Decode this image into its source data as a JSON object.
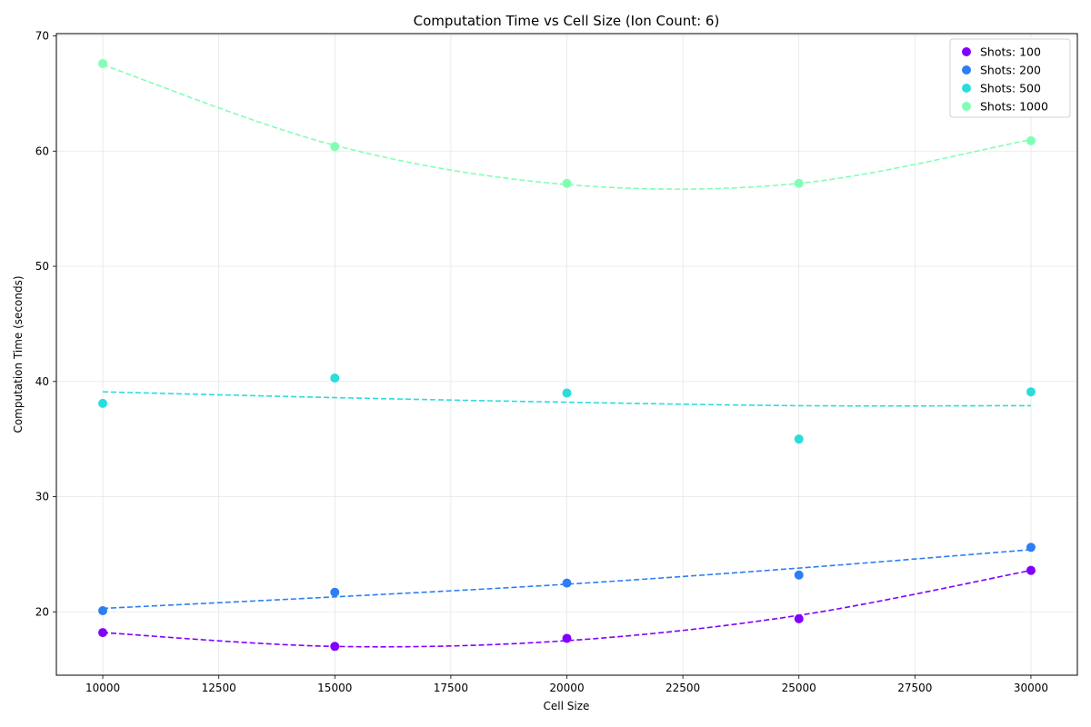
{
  "chart_data": {
    "type": "scatter",
    "title": "Computation Time vs Cell Size (Ion Count: 6)",
    "xlabel": "Cell Size",
    "ylabel": "Computation Time (seconds)",
    "xlim": [
      9000,
      31000
    ],
    "ylim": [
      14.5,
      70.2
    ],
    "xticks": [
      10000,
      12500,
      15000,
      17500,
      20000,
      22500,
      25000,
      27500,
      30000
    ],
    "yticks": [
      20,
      30,
      40,
      50,
      60,
      70
    ],
    "grid": true,
    "legend_position": "top-right",
    "x": [
      10000,
      15000,
      20000,
      25000,
      30000
    ],
    "series": [
      {
        "name": "Shots: 100",
        "color": "#8000ff",
        "values": [
          18.2,
          17.0,
          17.7,
          19.4,
          23.6
        ],
        "trend": [
          18.2,
          17.0,
          17.5,
          19.7,
          23.6
        ]
      },
      {
        "name": "Shots: 200",
        "color": "#2c7ef7",
        "values": [
          20.1,
          21.7,
          22.5,
          23.2,
          25.6
        ],
        "trend": [
          20.3,
          21.3,
          22.4,
          23.8,
          25.4
        ]
      },
      {
        "name": "Shots: 500",
        "color": "#2adddd",
        "values": [
          38.1,
          40.3,
          39.0,
          35.0,
          39.1
        ],
        "trend": [
          39.1,
          38.6,
          38.2,
          37.9,
          37.9
        ]
      },
      {
        "name": "Shots: 1000",
        "color": "#80ffb4",
        "values": [
          67.6,
          60.4,
          57.2,
          57.2,
          60.9
        ],
        "trend": [
          67.5,
          60.5,
          57.1,
          57.2,
          61.0
        ]
      }
    ]
  }
}
